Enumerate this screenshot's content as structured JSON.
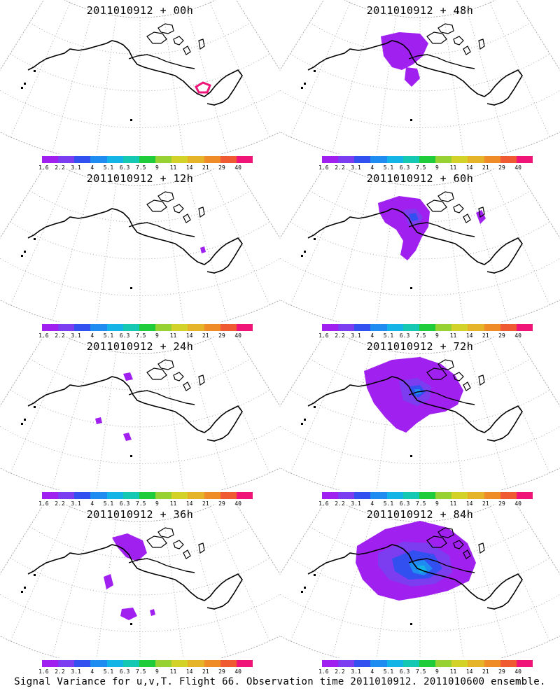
{
  "caption": "Signal Variance for u,v,T. Flight 66. Observation time 2011010912. 2011010600 ensemble.",
  "colorbar": {
    "labels": [
      "1.6",
      "2.2",
      "3.1",
      "4",
      "5.1",
      "6.3",
      "7.5",
      "9",
      "11",
      "14",
      "21",
      "29",
      "40"
    ],
    "colors": [
      "#a020f0",
      "#7c3cf0",
      "#3250f0",
      "#1e8cf0",
      "#14b4e6",
      "#14c8b4",
      "#1ecc3c",
      "#96d232",
      "#d2d228",
      "#e6b428",
      "#f08c28",
      "#f05a32",
      "#f01478"
    ]
  },
  "chart_data": [
    {
      "type": "heatmap",
      "title": "2011010912 + 00h",
      "level_shown": "small contour ring near Hudson Bay region"
    },
    {
      "type": "heatmap",
      "title": "2011010912 + 48h",
      "level_shown": "1.6-2.2 band over Arctic/Alaska"
    },
    {
      "type": "heatmap",
      "title": "2011010912 + 12h",
      "level_shown": "isolated 1.6 patch east"
    },
    {
      "type": "heatmap",
      "title": "2011010912 + 60h",
      "level_shown": "1.6-3.1 over Alaska/Bering"
    },
    {
      "type": "heatmap",
      "title": "2011010912 + 24h",
      "level_shown": "scattered 1.6 patches"
    },
    {
      "type": "heatmap",
      "title": "2011010912 + 72h",
      "level_shown": "1.6-4 over Alaska/Pacific"
    },
    {
      "type": "heatmap",
      "title": "2011010912 + 36h",
      "level_shown": "1.6 patches Bering/Pacific"
    },
    {
      "type": "heatmap",
      "title": "2011010912 + 84h",
      "level_shown": "1.6-5.1 large region"
    }
  ]
}
